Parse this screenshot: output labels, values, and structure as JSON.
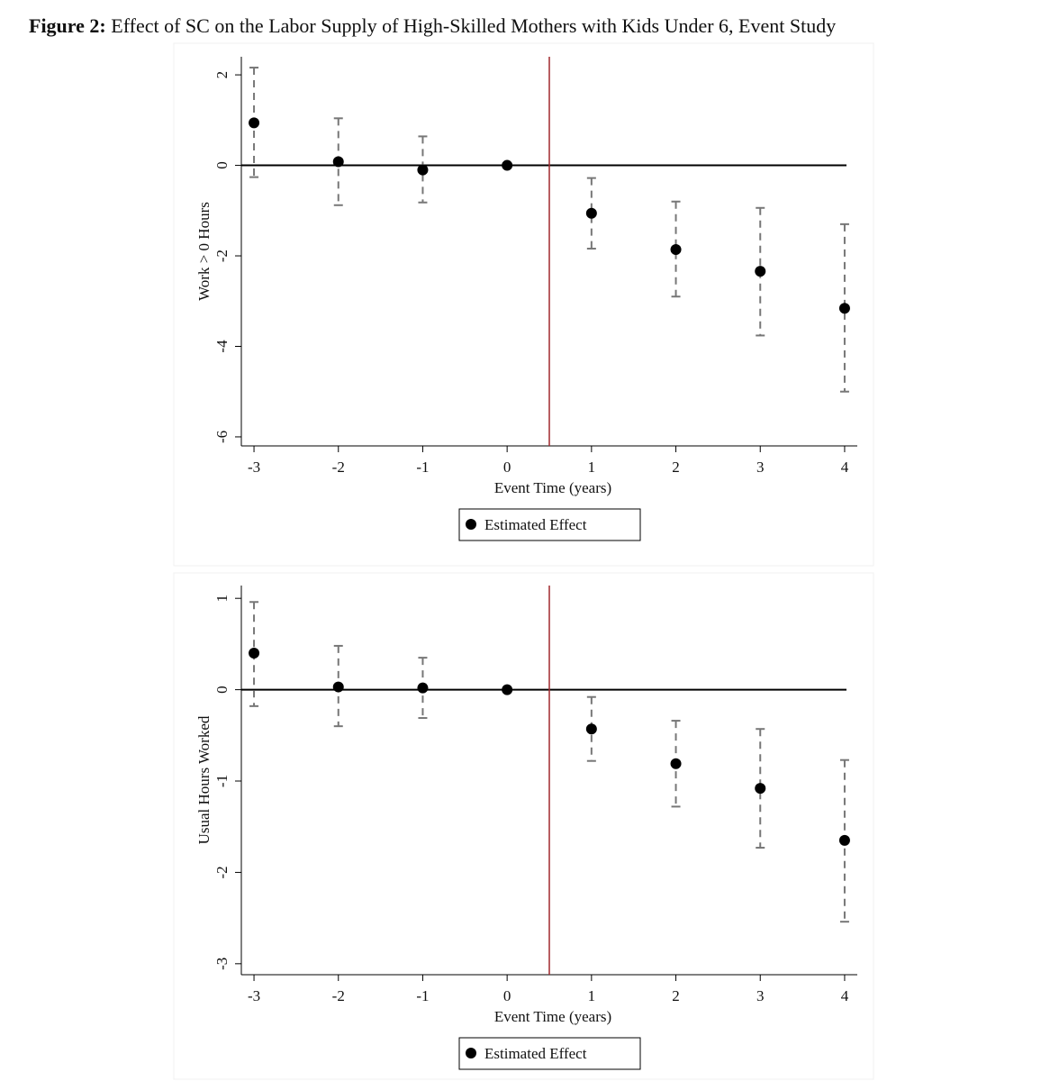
{
  "figure": {
    "label": "Figure 2:",
    "title": "Effect of SC on the Labor Supply of High-Skilled Mothers with Kids Under 6, Event Study"
  },
  "chart_data": [
    {
      "type": "errorbar",
      "xlabel": "Event Time (years)",
      "ylabel": "Work > 0 Hours",
      "x": [
        -3,
        -2,
        -1,
        0,
        1,
        2,
        3,
        4
      ],
      "xlim": [
        -3.15,
        4.15
      ],
      "xticks": [
        -3,
        -2,
        -1,
        0,
        1,
        2,
        3,
        4
      ],
      "ylim": [
        -6.2,
        2.4
      ],
      "yticks": [
        2,
        0,
        -2,
        -4,
        -6
      ],
      "series": [
        {
          "name": "Estimated Effect",
          "color": "#000000",
          "values": [
            0.94,
            0.08,
            -0.1,
            0,
            -1.06,
            -1.86,
            -2.34,
            -3.16
          ],
          "upper": [
            2.16,
            1.04,
            0.64,
            0,
            -0.28,
            -0.8,
            -0.94,
            -1.3
          ],
          "lower": [
            -0.26,
            -0.88,
            -0.82,
            0,
            -1.84,
            -2.9,
            -3.76,
            -5.0
          ]
        }
      ],
      "error_color": "#777777",
      "hline": 0,
      "vline": 0.5,
      "vline_color": "#a0282d",
      "legend": "bottom"
    },
    {
      "type": "errorbar",
      "xlabel": "Event Time (years)",
      "ylabel": "Usual Hours Worked",
      "x": [
        -3,
        -2,
        -1,
        0,
        1,
        2,
        3,
        4
      ],
      "xlim": [
        -3.15,
        4.15
      ],
      "xticks": [
        -3,
        -2,
        -1,
        0,
        1,
        2,
        3,
        4
      ],
      "ylim": [
        -3.12,
        1.14
      ],
      "yticks": [
        1,
        0,
        -1,
        -2,
        -3
      ],
      "series": [
        {
          "name": "Estimated Effect",
          "color": "#000000",
          "values": [
            0.4,
            0.03,
            0.02,
            0,
            -0.43,
            -0.81,
            -1.08,
            -1.65
          ],
          "upper": [
            0.96,
            0.48,
            0.35,
            0,
            -0.08,
            -0.34,
            -0.43,
            -0.77
          ],
          "lower": [
            -0.18,
            -0.4,
            -0.31,
            0,
            -0.78,
            -1.28,
            -1.73,
            -2.54
          ]
        }
      ],
      "error_color": "#777777",
      "hline": 0,
      "vline": 0.5,
      "vline_color": "#a0282d",
      "legend": "bottom"
    }
  ]
}
